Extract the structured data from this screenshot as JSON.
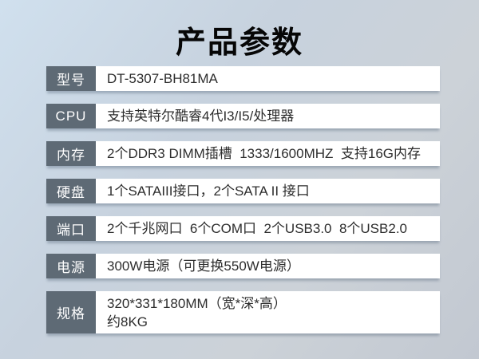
{
  "page": {
    "title": "产品参数"
  },
  "table": {
    "rows": [
      {
        "label": "型号",
        "value": "DT-5307-BH81MA"
      },
      {
        "label": "CPU",
        "value": "支持英特尔酷睿4代I3/I5/处理器"
      },
      {
        "label": "内存",
        "value": "2个DDR3 DIMM插槽  1333/1600MHZ  支持16G内存"
      },
      {
        "label": "硬盘",
        "value": "1个SATAIII接口，2个SATA II 接口"
      },
      {
        "label": "端口",
        "value": "2个千兆网口  6个COM口  2个USB3.0  8个USB2.0"
      },
      {
        "label": "电源",
        "value": "300W电源（可更换550W电源）"
      },
      {
        "label": "规格",
        "value": "320*331*180MM（宽*深*高）\n约8KG"
      }
    ]
  },
  "colors": {
    "background_top_left": "#d0e0ee",
    "background_bottom_right": "#c2c8d1",
    "label_bg": "#5e6a75",
    "label_text": "#ffffff",
    "value_bg": "#ffffff",
    "value_text": "#2d2d2d",
    "title_text": "#060606"
  }
}
